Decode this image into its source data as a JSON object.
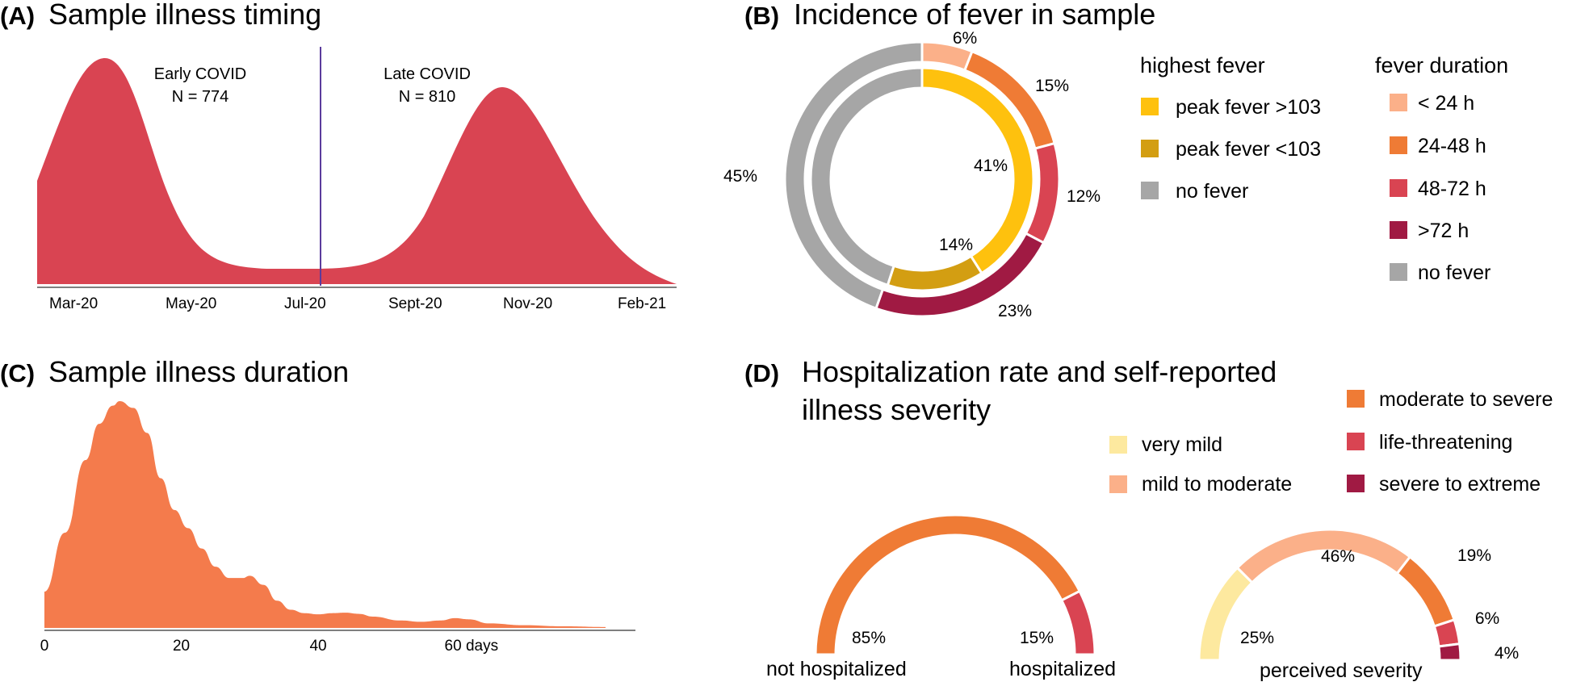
{
  "panelA": {
    "letter": "(A)",
    "title": "Sample illness timing",
    "ticks": [
      "Mar-20",
      "May-20",
      "Jul-20",
      "Sept-20",
      "Nov-20",
      "Feb-21"
    ],
    "early_label": "Early COVID",
    "early_n": "N = 774",
    "late_label": "Late COVID",
    "late_n": "N = 810",
    "color": "#d94452",
    "divider_color": "#5b3b9c"
  },
  "panelB": {
    "letter": "(B)",
    "title": "Incidence of fever in sample",
    "legend_highest_title": "highest fever",
    "legend_highest": [
      {
        "label": "peak fever >103",
        "color": "#fec10e"
      },
      {
        "label": "peak fever <103",
        "color": "#d39e12"
      },
      {
        "label": "no fever",
        "color": "#a6a6a6"
      }
    ],
    "legend_duration_title": "fever duration",
    "legend_duration": [
      {
        "label": "< 24 h",
        "color": "#fbb089"
      },
      {
        "label": "24-48 h",
        "color": "#ef7b35"
      },
      {
        "label": "48-72 h",
        "color": "#d94452"
      },
      {
        "label": ">72 h",
        "color": "#a01a43"
      },
      {
        "label": "no fever",
        "color": "#a6a6a6"
      }
    ]
  },
  "panelC": {
    "letter": "(C)",
    "title": "Sample illness duration",
    "ticks": [
      "0",
      "20",
      "40",
      "60 days"
    ],
    "color": "#f47b4c"
  },
  "panelD": {
    "letter": "(D)",
    "title_line1": "Hospitalization rate and self-reported",
    "title_line2": "illness severity",
    "legend_left": [
      {
        "label": "very mild",
        "color": "#fde99f"
      },
      {
        "label": "mild to moderate",
        "color": "#fbb089"
      }
    ],
    "legend_right": [
      {
        "label": "moderate to severe",
        "color": "#ef7b35"
      },
      {
        "label": "life-threatening",
        "color": "#d94452"
      },
      {
        "label": "severe to extreme",
        "color": "#a01a43"
      }
    ],
    "hosp_left_label": "not hospitalized",
    "hosp_right_label": "hospitalized",
    "severity_label": "perceived severity"
  },
  "chart_data": [
    {
      "type": "area",
      "panel": "A",
      "title": "Sample illness timing",
      "x_ticks": [
        "Mar-20",
        "May-20",
        "Jul-20",
        "Sept-20",
        "Nov-20",
        "Feb-21"
      ],
      "groups": [
        {
          "name": "Early COVID",
          "n": 774
        },
        {
          "name": "Late COVID",
          "n": 810
        }
      ],
      "divider_at": "Jul-20",
      "shape": "bimodal density with peaks near Apr-20 and Nov-20"
    },
    {
      "type": "pie",
      "panel": "B",
      "title": "Incidence of fever in sample",
      "rings": [
        {
          "name": "highest fever",
          "slices": [
            {
              "label": "peak fever >103",
              "value": 41,
              "text": "41%"
            },
            {
              "label": "peak fever <103",
              "value": 14,
              "text": "14%"
            },
            {
              "label": "no fever",
              "value": 45,
              "text": ""
            }
          ]
        },
        {
          "name": "fever duration",
          "slices": [
            {
              "label": "< 24 h",
              "value": 6,
              "text": "6%"
            },
            {
              "label": "24-48 h",
              "value": 15,
              "text": "15%"
            },
            {
              "label": "48-72 h",
              "value": 12,
              "text": "12%"
            },
            {
              "label": ">72 h",
              "value": 23,
              "text": "23%"
            },
            {
              "label": "no fever",
              "value": 45,
              "text": "45%"
            }
          ]
        }
      ]
    },
    {
      "type": "area",
      "panel": "C",
      "title": "Sample illness duration",
      "x_ticks": [
        0,
        20,
        40,
        60
      ],
      "x_unit": "days",
      "xlim": [
        0,
        82
      ],
      "density": [
        [
          0,
          0.16
        ],
        [
          3,
          0.42
        ],
        [
          6,
          0.74
        ],
        [
          8,
          0.9
        ],
        [
          10,
          0.98
        ],
        [
          11,
          1.0
        ],
        [
          13,
          0.97
        ],
        [
          15,
          0.86
        ],
        [
          17,
          0.66
        ],
        [
          19,
          0.52
        ],
        [
          21,
          0.44
        ],
        [
          23,
          0.35
        ],
        [
          25,
          0.27
        ],
        [
          27,
          0.22
        ],
        [
          29,
          0.22
        ],
        [
          30,
          0.23
        ],
        [
          32,
          0.19
        ],
        [
          34,
          0.12
        ],
        [
          36,
          0.08
        ],
        [
          38,
          0.065
        ],
        [
          40,
          0.06
        ],
        [
          42,
          0.065
        ],
        [
          44,
          0.067
        ],
        [
          46,
          0.062
        ],
        [
          48,
          0.05
        ],
        [
          52,
          0.033
        ],
        [
          55,
          0.027
        ],
        [
          58,
          0.033
        ],
        [
          60,
          0.043
        ],
        [
          62,
          0.038
        ],
        [
          65,
          0.02
        ],
        [
          70,
          0.012
        ],
        [
          76,
          0.007
        ],
        [
          82,
          0.004
        ]
      ]
    },
    {
      "type": "pie",
      "panel": "D-hospitalization",
      "style": "half-donut",
      "slices": [
        {
          "label": "not hospitalized",
          "value": 85,
          "text": "85%"
        },
        {
          "label": "hospitalized",
          "value": 15,
          "text": "15%"
        }
      ]
    },
    {
      "type": "pie",
      "panel": "D-severity",
      "style": "half-donut",
      "xlabel": "perceived severity",
      "slices": [
        {
          "label": "very mild",
          "value": 25,
          "text": "25%"
        },
        {
          "label": "mild to moderate",
          "value": 46,
          "text": "46%"
        },
        {
          "label": "moderate to severe",
          "value": 19,
          "text": "19%"
        },
        {
          "label": "life-threatening",
          "value": 6,
          "text": "6%"
        },
        {
          "label": "severe to extreme",
          "value": 4,
          "text": "4%"
        }
      ]
    }
  ]
}
